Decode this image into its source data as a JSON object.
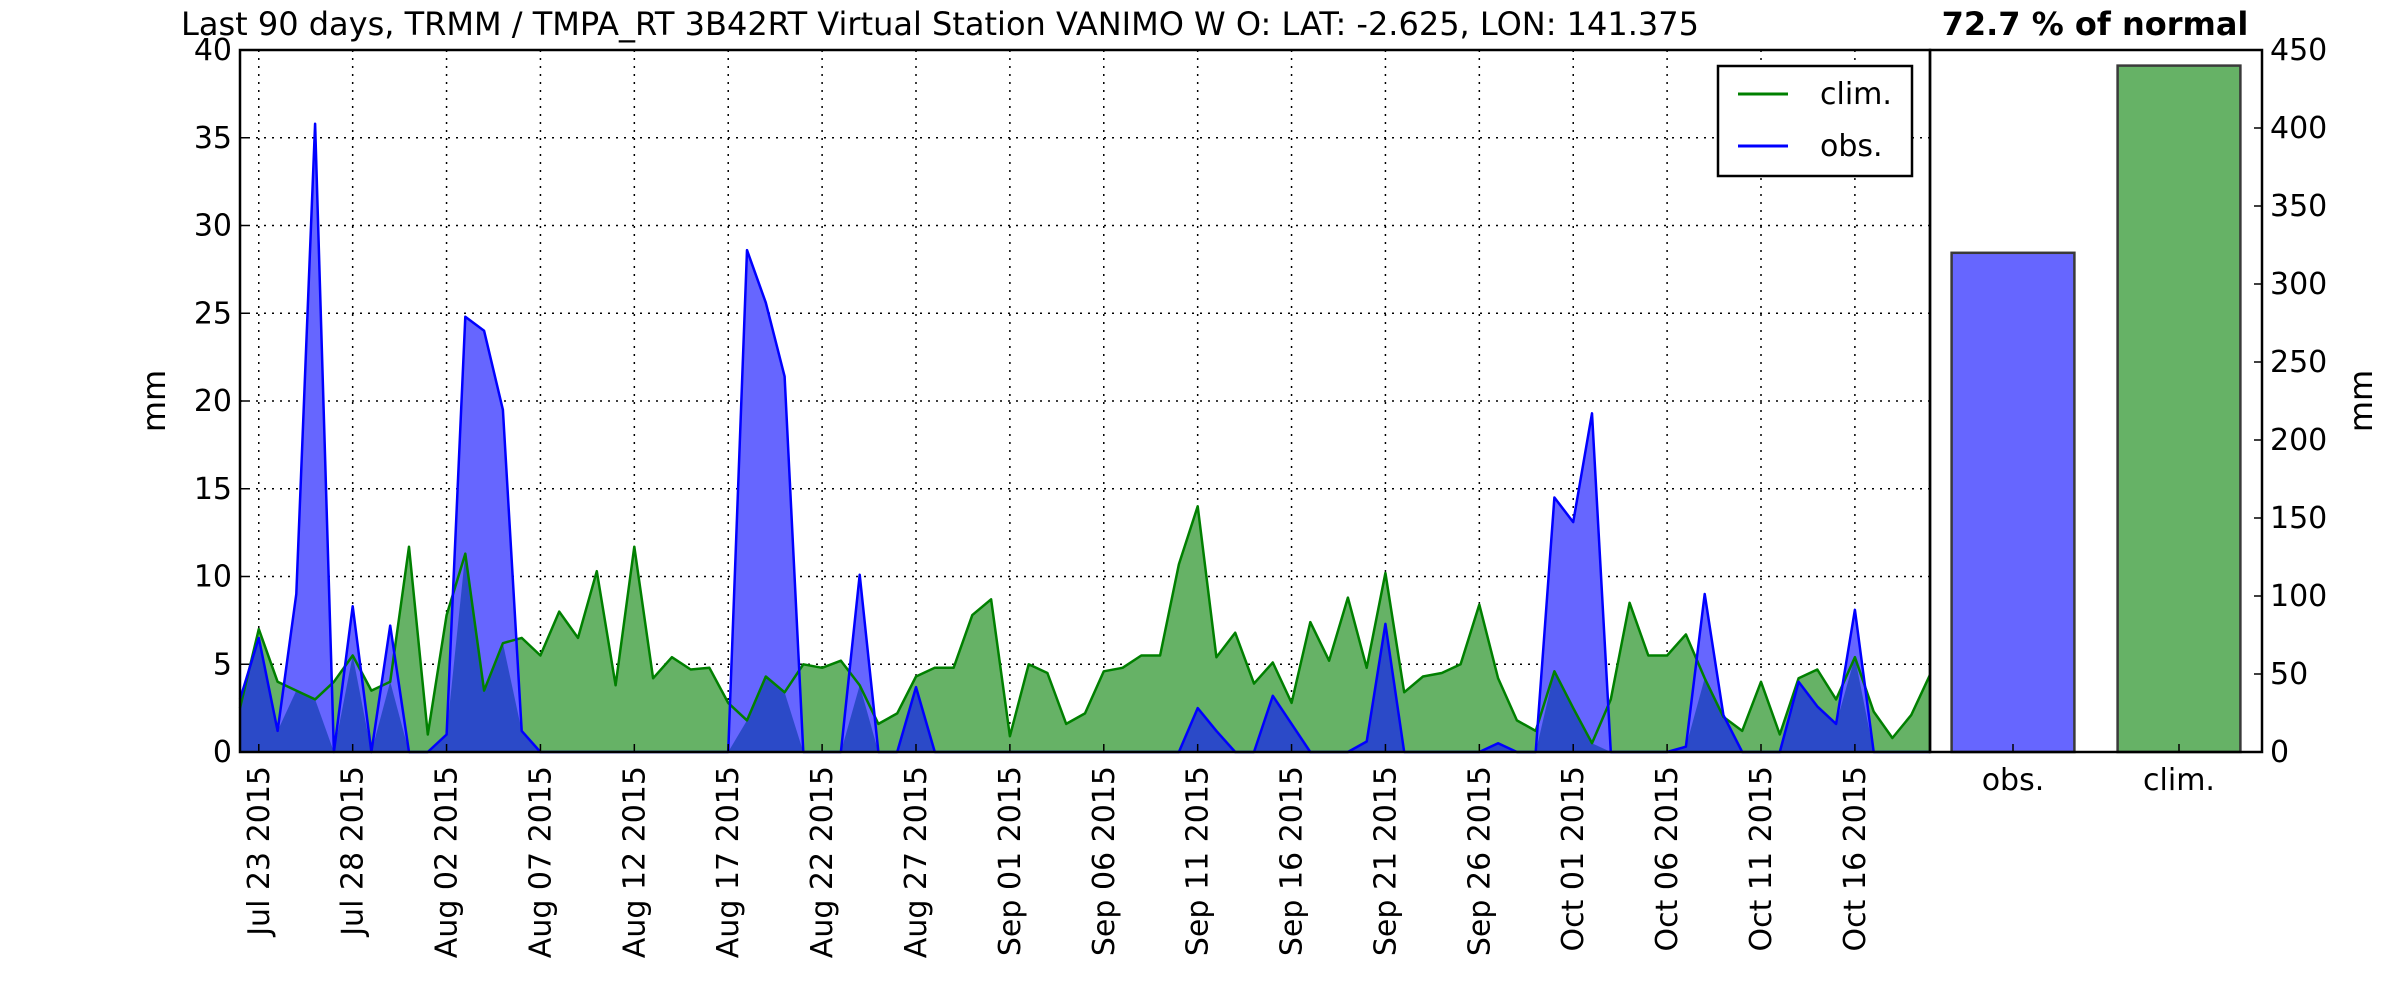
{
  "chart_data": [
    {
      "type": "area",
      "title": "Last 90 days, TRMM / TMPA_RT 3B42RT Virtual Station VANIMO W O: LAT: -2.625, LON: 141.375",
      "ylabel": "mm",
      "xlabel": "",
      "ylim": [
        0,
        40
      ],
      "y_ticks": [
        "0",
        "5",
        "10",
        "15",
        "20",
        "25",
        "30",
        "35",
        "40"
      ],
      "x_start": "2015-07-22",
      "x_end": "2015-10-20",
      "x_tick_labels": [
        "Jul 23 2015",
        "Jul 28 2015",
        "Aug 02 2015",
        "Aug 07 2015",
        "Aug 12 2015",
        "Aug 17 2015",
        "Aug 22 2015",
        "Aug 27 2015",
        "Sep 01 2015",
        "Sep 06 2015",
        "Sep 11 2015",
        "Sep 16 2015",
        "Sep 21 2015",
        "Sep 26 2015",
        "Oct 01 2015",
        "Oct 06 2015",
        "Oct 11 2015",
        "Oct 16 2015"
      ],
      "grid": true,
      "legend_position": "top-right",
      "colors": {
        "clim": "#008000",
        "obs": "#0000ff",
        "clim_fill": "#66b266",
        "obs_fill": "#6666ff",
        "overlap_fill": "#2b4ac8"
      },
      "series": [
        {
          "name": "clim.",
          "values": [
            2.5,
            7,
            4,
            3.5,
            3,
            4,
            5.5,
            3.5,
            4,
            11.7,
            1,
            7.8,
            11.3,
            3.5,
            6.2,
            6.5,
            5.5,
            8,
            6.5,
            10.3,
            3.8,
            11.7,
            4.2,
            5.4,
            4.7,
            4.8,
            2.8,
            1.8,
            4.3,
            3.4,
            5,
            4.8,
            5.2,
            3.8,
            1.6,
            2.2,
            4.3,
            4.8,
            4.8,
            7.8,
            8.7,
            0.9,
            5,
            4.5,
            1.6,
            2.2,
            4.6,
            4.8,
            5.5,
            5.5,
            10.7,
            14,
            5.4,
            6.8,
            3.9,
            5.1,
            2.8,
            7.4,
            5.2,
            8.8,
            4.8,
            10.2,
            3.4,
            4.3,
            4.5,
            5,
            8.4,
            4.2,
            1.8,
            1.2,
            4.6,
            2.5,
            0.5,
            3,
            8.5,
            5.5,
            5.5,
            6.7,
            4.2,
            2,
            1.2,
            4,
            1,
            4.2,
            4.7,
            3,
            5.4,
            2.3,
            0.8,
            2.1,
            4.4
          ]
        },
        {
          "name": "obs.",
          "values": [
            3,
            6.5,
            1.2,
            9,
            35.8,
            0,
            8.3,
            0,
            7.2,
            0,
            0,
            1,
            24.8,
            24,
            19.5,
            1.2,
            0,
            0,
            0,
            0,
            0,
            0,
            0,
            0,
            0,
            0,
            0,
            28.6,
            25.6,
            21.4,
            0,
            0,
            0,
            10.1,
            0,
            0,
            3.7,
            0,
            0,
            0,
            0,
            0,
            0,
            0,
            0,
            0,
            0,
            0,
            0,
            0,
            0,
            2.5,
            1.2,
            0,
            0,
            3.2,
            1.6,
            0,
            0,
            0,
            0.6,
            7.3,
            0,
            0,
            0,
            0,
            0,
            0.5,
            0,
            0,
            14.5,
            13.1,
            19.3,
            0,
            0,
            0,
            0,
            0.3,
            9,
            2.1,
            0,
            0,
            0,
            4,
            2.6,
            1.6,
            8.1,
            0,
            0,
            0,
            0
          ]
        }
      ]
    },
    {
      "type": "bar",
      "title": "72.7 % of normal",
      "ylabel": "mm",
      "ylim": [
        0,
        450
      ],
      "y_ticks": [
        "0",
        "50",
        "100",
        "150",
        "200",
        "250",
        "300",
        "350",
        "400",
        "450"
      ],
      "categories": [
        "obs.",
        "clim."
      ],
      "values": [
        320,
        440
      ],
      "colors": [
        "#6666ff",
        "#66b266"
      ]
    }
  ]
}
